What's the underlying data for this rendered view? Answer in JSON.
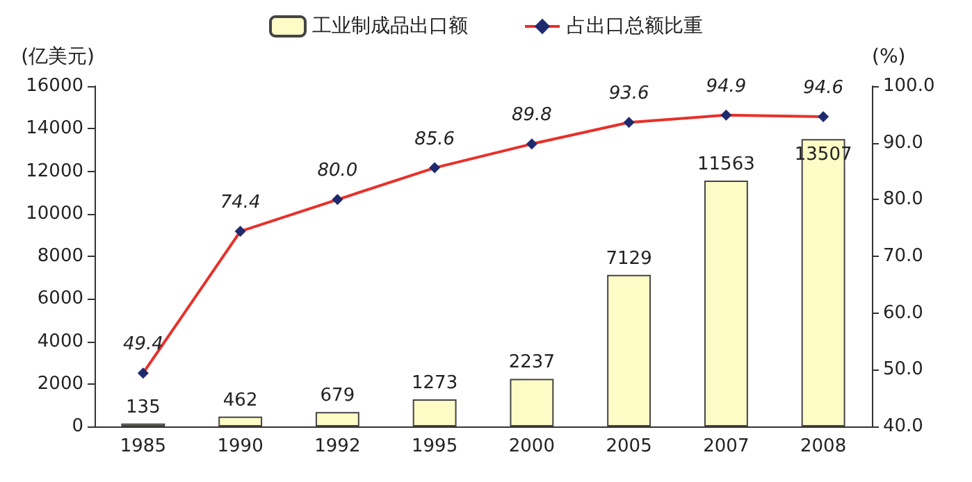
{
  "chart_data": {
    "type": "bar",
    "ylabel": "(亿美元)",
    "y2label": "(%)",
    "categories": [
      "1985",
      "1990",
      "1992",
      "1995",
      "2000",
      "2005",
      "2007",
      "2008"
    ],
    "series": [
      {
        "name": "工业制成品出口额",
        "color": "#fdfbc6",
        "values": [
          135,
          462,
          679,
          1273,
          2237,
          7129,
          11563,
          13507
        ],
        "value_labels": [
          "135",
          "462",
          "679",
          "1273",
          "2237",
          "7129",
          "11563",
          "13507"
        ]
      },
      {
        "name": "占出口总额比重",
        "type": "line",
        "axis": "y2",
        "color": "#e8302a",
        "values": [
          49.4,
          74.4,
          80.0,
          85.6,
          89.8,
          93.6,
          94.9,
          94.6
        ],
        "value_labels": [
          "49.4",
          "74.4",
          "80.0",
          "85.6",
          "89.8",
          "93.6",
          "94.9",
          "94.6"
        ]
      }
    ],
    "ylim": [
      0,
      16000
    ],
    "yticks": [
      0,
      2000,
      4000,
      6000,
      8000,
      10000,
      12000,
      14000,
      16000
    ],
    "y2lim": [
      40,
      100
    ],
    "y2ticks": [
      {
        "value": 40,
        "label": "40.0"
      },
      {
        "value": 50,
        "label": "50.0"
      },
      {
        "value": 60,
        "label": "60.0"
      },
      {
        "value": 70,
        "label": "70.0"
      },
      {
        "value": 80,
        "label": "80.0"
      },
      {
        "value": 90,
        "label": "90.0"
      },
      {
        "value": 100,
        "label": "100.0"
      }
    ],
    "marker": "diamond",
    "grid": false,
    "legend": "top"
  }
}
